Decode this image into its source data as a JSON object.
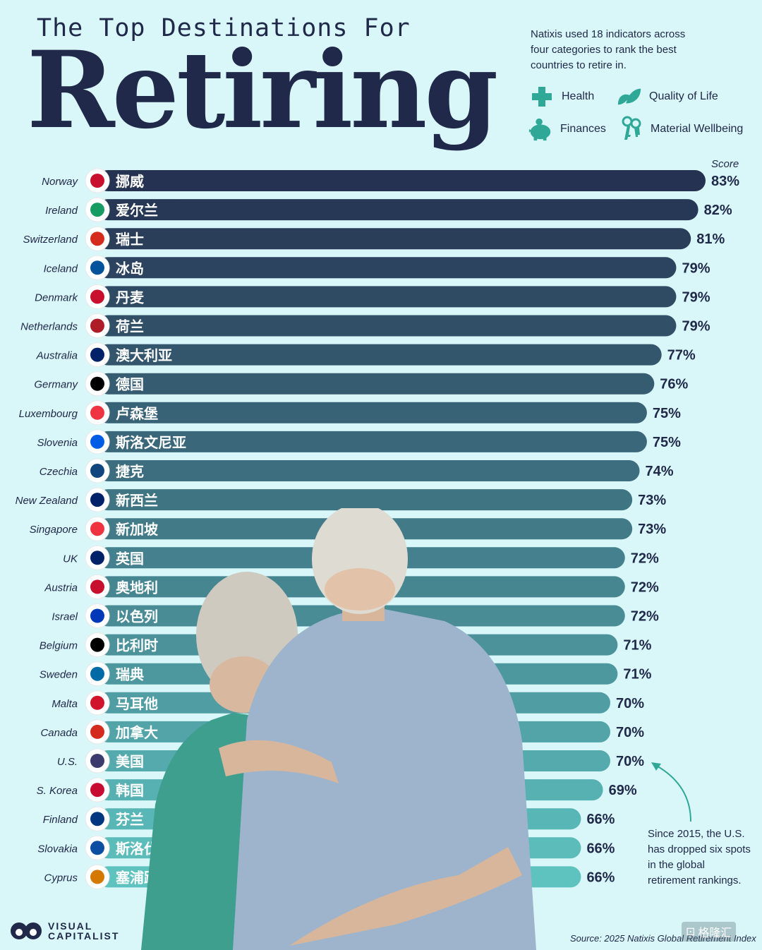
{
  "header": {
    "subtitle": "The Top Destinations For",
    "title": "Retiring",
    "intro": "Natixis used 18 indicators across four categories to rank the best countries to retire in."
  },
  "legend": {
    "items": [
      {
        "label": "Health",
        "icon": "health-cross-icon"
      },
      {
        "label": "Quality of Life",
        "icon": "leaf-icon"
      },
      {
        "label": "Finances",
        "icon": "piggy-bank-icon"
      },
      {
        "label": "Material Wellbeing",
        "icon": "keys-icon"
      }
    ],
    "color": "#2fa898"
  },
  "score_header": "Score",
  "annotation": "Since 2015, the U.S. has dropped six spots in the global retirement rankings.",
  "source": "Source: 2025 Natixis Global Retirement Index",
  "brand": {
    "line1": "VISUAL",
    "line2": "CAPITALIST"
  },
  "watermark": "格隆汇",
  "colors": {
    "background": "#d9f7f9",
    "bar_top": "#253251",
    "bar_bottom": "#5ec2bf",
    "text": "#20294a"
  },
  "chart_data": {
    "type": "bar",
    "orientation": "horizontal",
    "title": "Retiring",
    "categories": [
      "Norway",
      "Ireland",
      "Switzerland",
      "Iceland",
      "Denmark",
      "Netherlands",
      "Australia",
      "Germany",
      "Luxembourg",
      "Slovenia",
      "Czechia",
      "New Zealand",
      "Singapore",
      "UK",
      "Austria",
      "Israel",
      "Belgium",
      "Sweden",
      "Malta",
      "Canada",
      "U.S.",
      "S. Korea",
      "Finland",
      "Slovakia",
      "Cyprus"
    ],
    "labels_zh": [
      "挪威",
      "爱尔兰",
      "瑞士",
      "冰岛",
      "丹麦",
      "荷兰",
      "澳大利亚",
      "德国",
      "卢森堡",
      "斯洛文尼亚",
      "捷克",
      "新西兰",
      "新加坡",
      "英国",
      "奥地利",
      "以色列",
      "比利时",
      "瑞典",
      "马耳他",
      "加拿大",
      "美国",
      "韩国",
      "芬兰",
      "斯洛伐克",
      "塞浦路斯"
    ],
    "values": [
      83,
      82,
      81,
      79,
      79,
      79,
      77,
      76,
      75,
      75,
      74,
      73,
      73,
      72,
      72,
      72,
      71,
      71,
      70,
      70,
      70,
      69,
      66,
      66,
      66
    ],
    "value_suffix": "%",
    "ylabel": "Score"
  }
}
